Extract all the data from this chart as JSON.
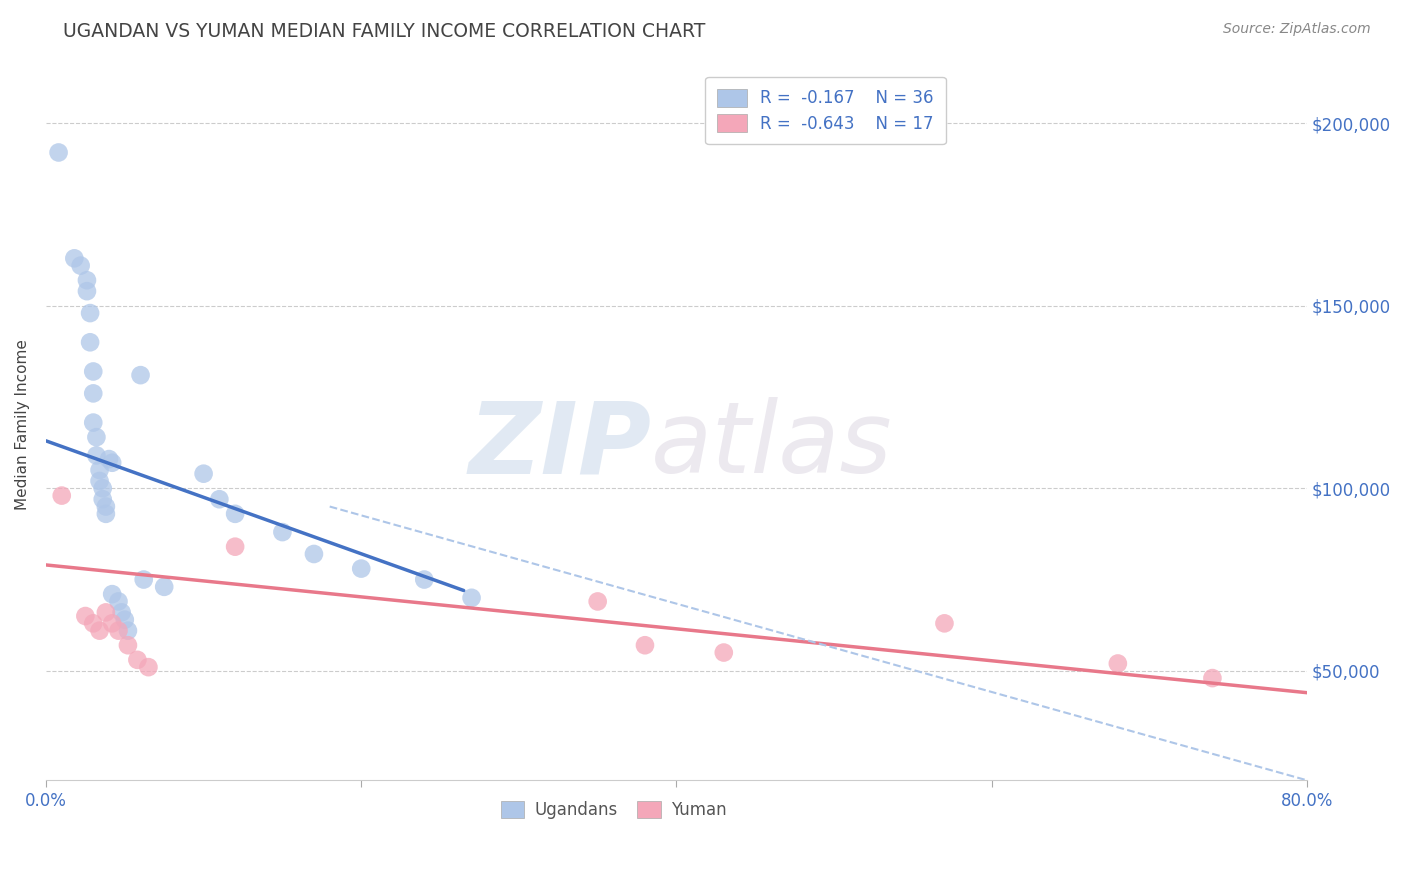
{
  "title": "UGANDAN VS YUMAN MEDIAN FAMILY INCOME CORRELATION CHART",
  "source": "Source: ZipAtlas.com",
  "ylabel": "Median Family Income",
  "xlim": [
    0.0,
    0.8
  ],
  "ylim": [
    20000,
    215000
  ],
  "background_color": "#ffffff",
  "grid_color": "#cccccc",
  "watermark_zip": "ZIP",
  "watermark_atlas": "atlas",
  "ugandan_color": "#aec6e8",
  "yuman_color": "#f4a7b9",
  "ugandan_line_color": "#4472c4",
  "yuman_line_color": "#e8788a",
  "dashed_line_color": "#aec6e8",
  "legend_r_ugandan": "R =  -0.167",
  "legend_n_ugandan": "N = 36",
  "legend_r_yuman": "R =  -0.643",
  "legend_n_yuman": "N = 17",
  "axis_label_color": "#4472c4",
  "title_color": "#444444",
  "source_color": "#888888",
  "ugandan_x": [
    0.008,
    0.018,
    0.022,
    0.026,
    0.026,
    0.028,
    0.028,
    0.03,
    0.03,
    0.03,
    0.032,
    0.032,
    0.034,
    0.034,
    0.036,
    0.036,
    0.038,
    0.038,
    0.04,
    0.042,
    0.042,
    0.046,
    0.048,
    0.05,
    0.052,
    0.06,
    0.062,
    0.075,
    0.1,
    0.11,
    0.12,
    0.15,
    0.17,
    0.2,
    0.24,
    0.27
  ],
  "ugandan_y": [
    192000,
    163000,
    161000,
    157000,
    154000,
    148000,
    140000,
    132000,
    126000,
    118000,
    114000,
    109000,
    105000,
    102000,
    100000,
    97000,
    95000,
    93000,
    108000,
    107000,
    71000,
    69000,
    66000,
    64000,
    61000,
    131000,
    75000,
    73000,
    104000,
    97000,
    93000,
    88000,
    82000,
    78000,
    75000,
    70000
  ],
  "yuman_x": [
    0.01,
    0.025,
    0.03,
    0.034,
    0.038,
    0.042,
    0.046,
    0.052,
    0.058,
    0.065,
    0.12,
    0.35,
    0.38,
    0.43,
    0.57,
    0.68,
    0.74
  ],
  "yuman_y": [
    98000,
    65000,
    63000,
    61000,
    66000,
    63000,
    61000,
    57000,
    53000,
    51000,
    84000,
    69000,
    57000,
    55000,
    63000,
    52000,
    48000
  ],
  "ugandan_trendline_x": [
    0.0,
    0.265
  ],
  "ugandan_trendline_y": [
    113000,
    72000
  ],
  "yuman_trendline_x": [
    0.0,
    0.8
  ],
  "yuman_trendline_y": [
    79000,
    44000
  ],
  "dashed_trendline_x": [
    0.18,
    0.8
  ],
  "dashed_trendline_y": [
    95000,
    20000
  ],
  "ytick_positions": [
    50000,
    100000,
    150000,
    200000
  ],
  "ytick_labels": [
    "$50,000",
    "$100,000",
    "$150,000",
    "$200,000"
  ],
  "xtick_positions": [
    0.0,
    0.2,
    0.4,
    0.6,
    0.8
  ],
  "xtick_labels": [
    "0.0%",
    "",
    "",
    "",
    "80.0%"
  ]
}
